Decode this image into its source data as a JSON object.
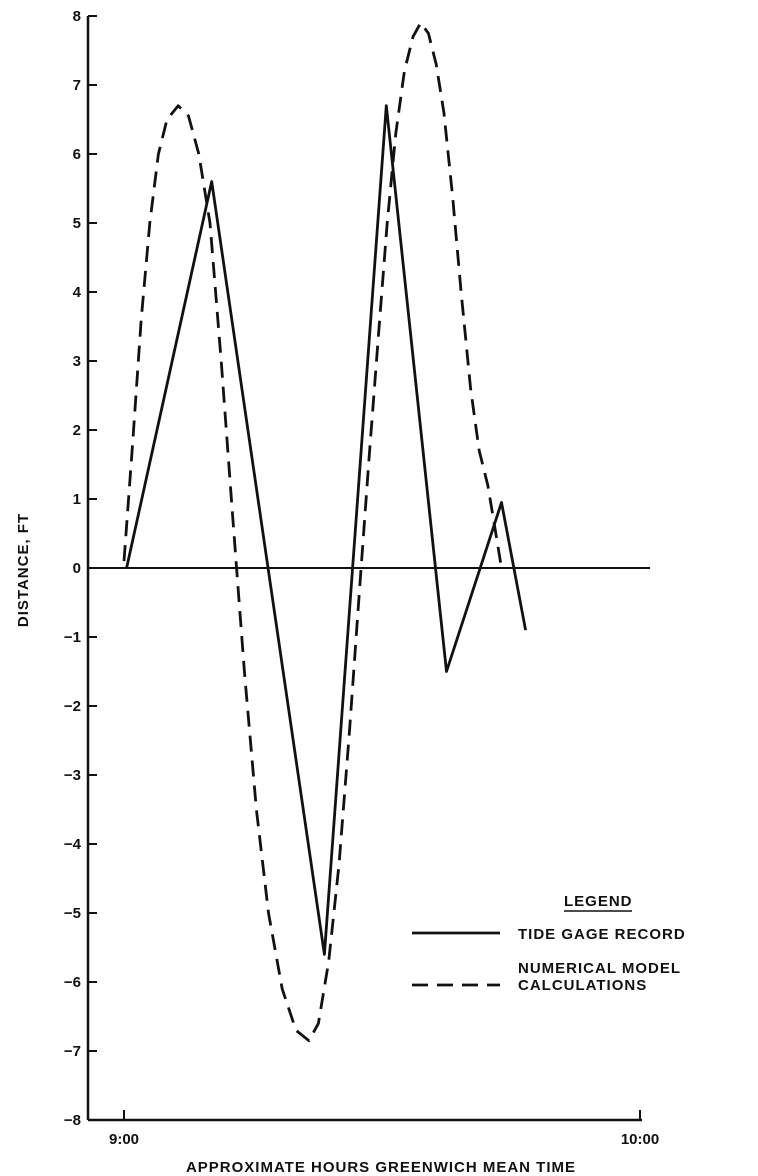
{
  "chart_data": {
    "type": "line",
    "xlabel": "APPROXIMATE HOURS GREENWICH MEAN TIME",
    "ylabel": "DISTANCE, FT",
    "xlim": [
      0,
      60
    ],
    "ylim": [
      -8,
      8
    ],
    "x_ticks": [
      {
        "value": 0,
        "label": "9:00"
      },
      {
        "value": 60,
        "label": "10:00"
      }
    ],
    "y_ticks": [
      8,
      7,
      6,
      5,
      4,
      3,
      2,
      1,
      0,
      -1,
      -2,
      -3,
      -4,
      -5,
      -6,
      -7,
      -8
    ],
    "zero_line": true,
    "grid": false,
    "legend": {
      "title": "LEGEND",
      "position": "lower-right",
      "entries": [
        {
          "label": "TIDE GAGE RECORD",
          "series": 0
        },
        {
          "label": "NUMERICAL MODEL",
          "label2": "CALCULATIONS",
          "series": 1
        }
      ]
    },
    "series": [
      {
        "name": "TIDE GAGE RECORD",
        "style": "solid",
        "color": "#111111",
        "points": [
          [
            0.3,
            0.0
          ],
          [
            10.2,
            5.6
          ],
          [
            23.3,
            -5.6
          ],
          [
            30.5,
            6.7
          ],
          [
            37.5,
            -1.5
          ],
          [
            43.9,
            0.95
          ],
          [
            46.7,
            -0.9
          ]
        ]
      },
      {
        "name": "NUMERICAL MODEL CALCULATIONS",
        "style": "dashed",
        "color": "#111111",
        "points": [
          [
            0.0,
            0.1
          ],
          [
            1.0,
            1.8
          ],
          [
            2.0,
            3.6
          ],
          [
            3.0,
            5.0
          ],
          [
            4.0,
            6.0
          ],
          [
            5.0,
            6.5
          ],
          [
            6.3,
            6.7
          ],
          [
            7.5,
            6.55
          ],
          [
            8.7,
            6.0
          ],
          [
            10.0,
            5.0
          ],
          [
            11.3,
            3.0
          ],
          [
            12.6,
            0.8
          ],
          [
            14.0,
            -1.5
          ],
          [
            15.4,
            -3.5
          ],
          [
            16.8,
            -5.0
          ],
          [
            18.4,
            -6.1
          ],
          [
            20.0,
            -6.7
          ],
          [
            21.5,
            -6.85
          ],
          [
            22.6,
            -6.6
          ],
          [
            23.8,
            -5.7
          ],
          [
            25.0,
            -4.3
          ],
          [
            26.2,
            -2.4
          ],
          [
            27.4,
            -0.3
          ],
          [
            28.5,
            1.6
          ],
          [
            29.6,
            3.4
          ],
          [
            30.6,
            5.0
          ],
          [
            31.6,
            6.3
          ],
          [
            32.6,
            7.2
          ],
          [
            33.6,
            7.7
          ],
          [
            34.5,
            7.9
          ],
          [
            35.4,
            7.75
          ],
          [
            36.3,
            7.3
          ],
          [
            37.2,
            6.6
          ],
          [
            38.2,
            5.4
          ],
          [
            39.2,
            4.0
          ],
          [
            40.3,
            2.6
          ],
          [
            41.3,
            1.7
          ],
          [
            42.3,
            1.2
          ],
          [
            43.1,
            0.6
          ],
          [
            43.9,
            0.0
          ]
        ]
      }
    ]
  }
}
